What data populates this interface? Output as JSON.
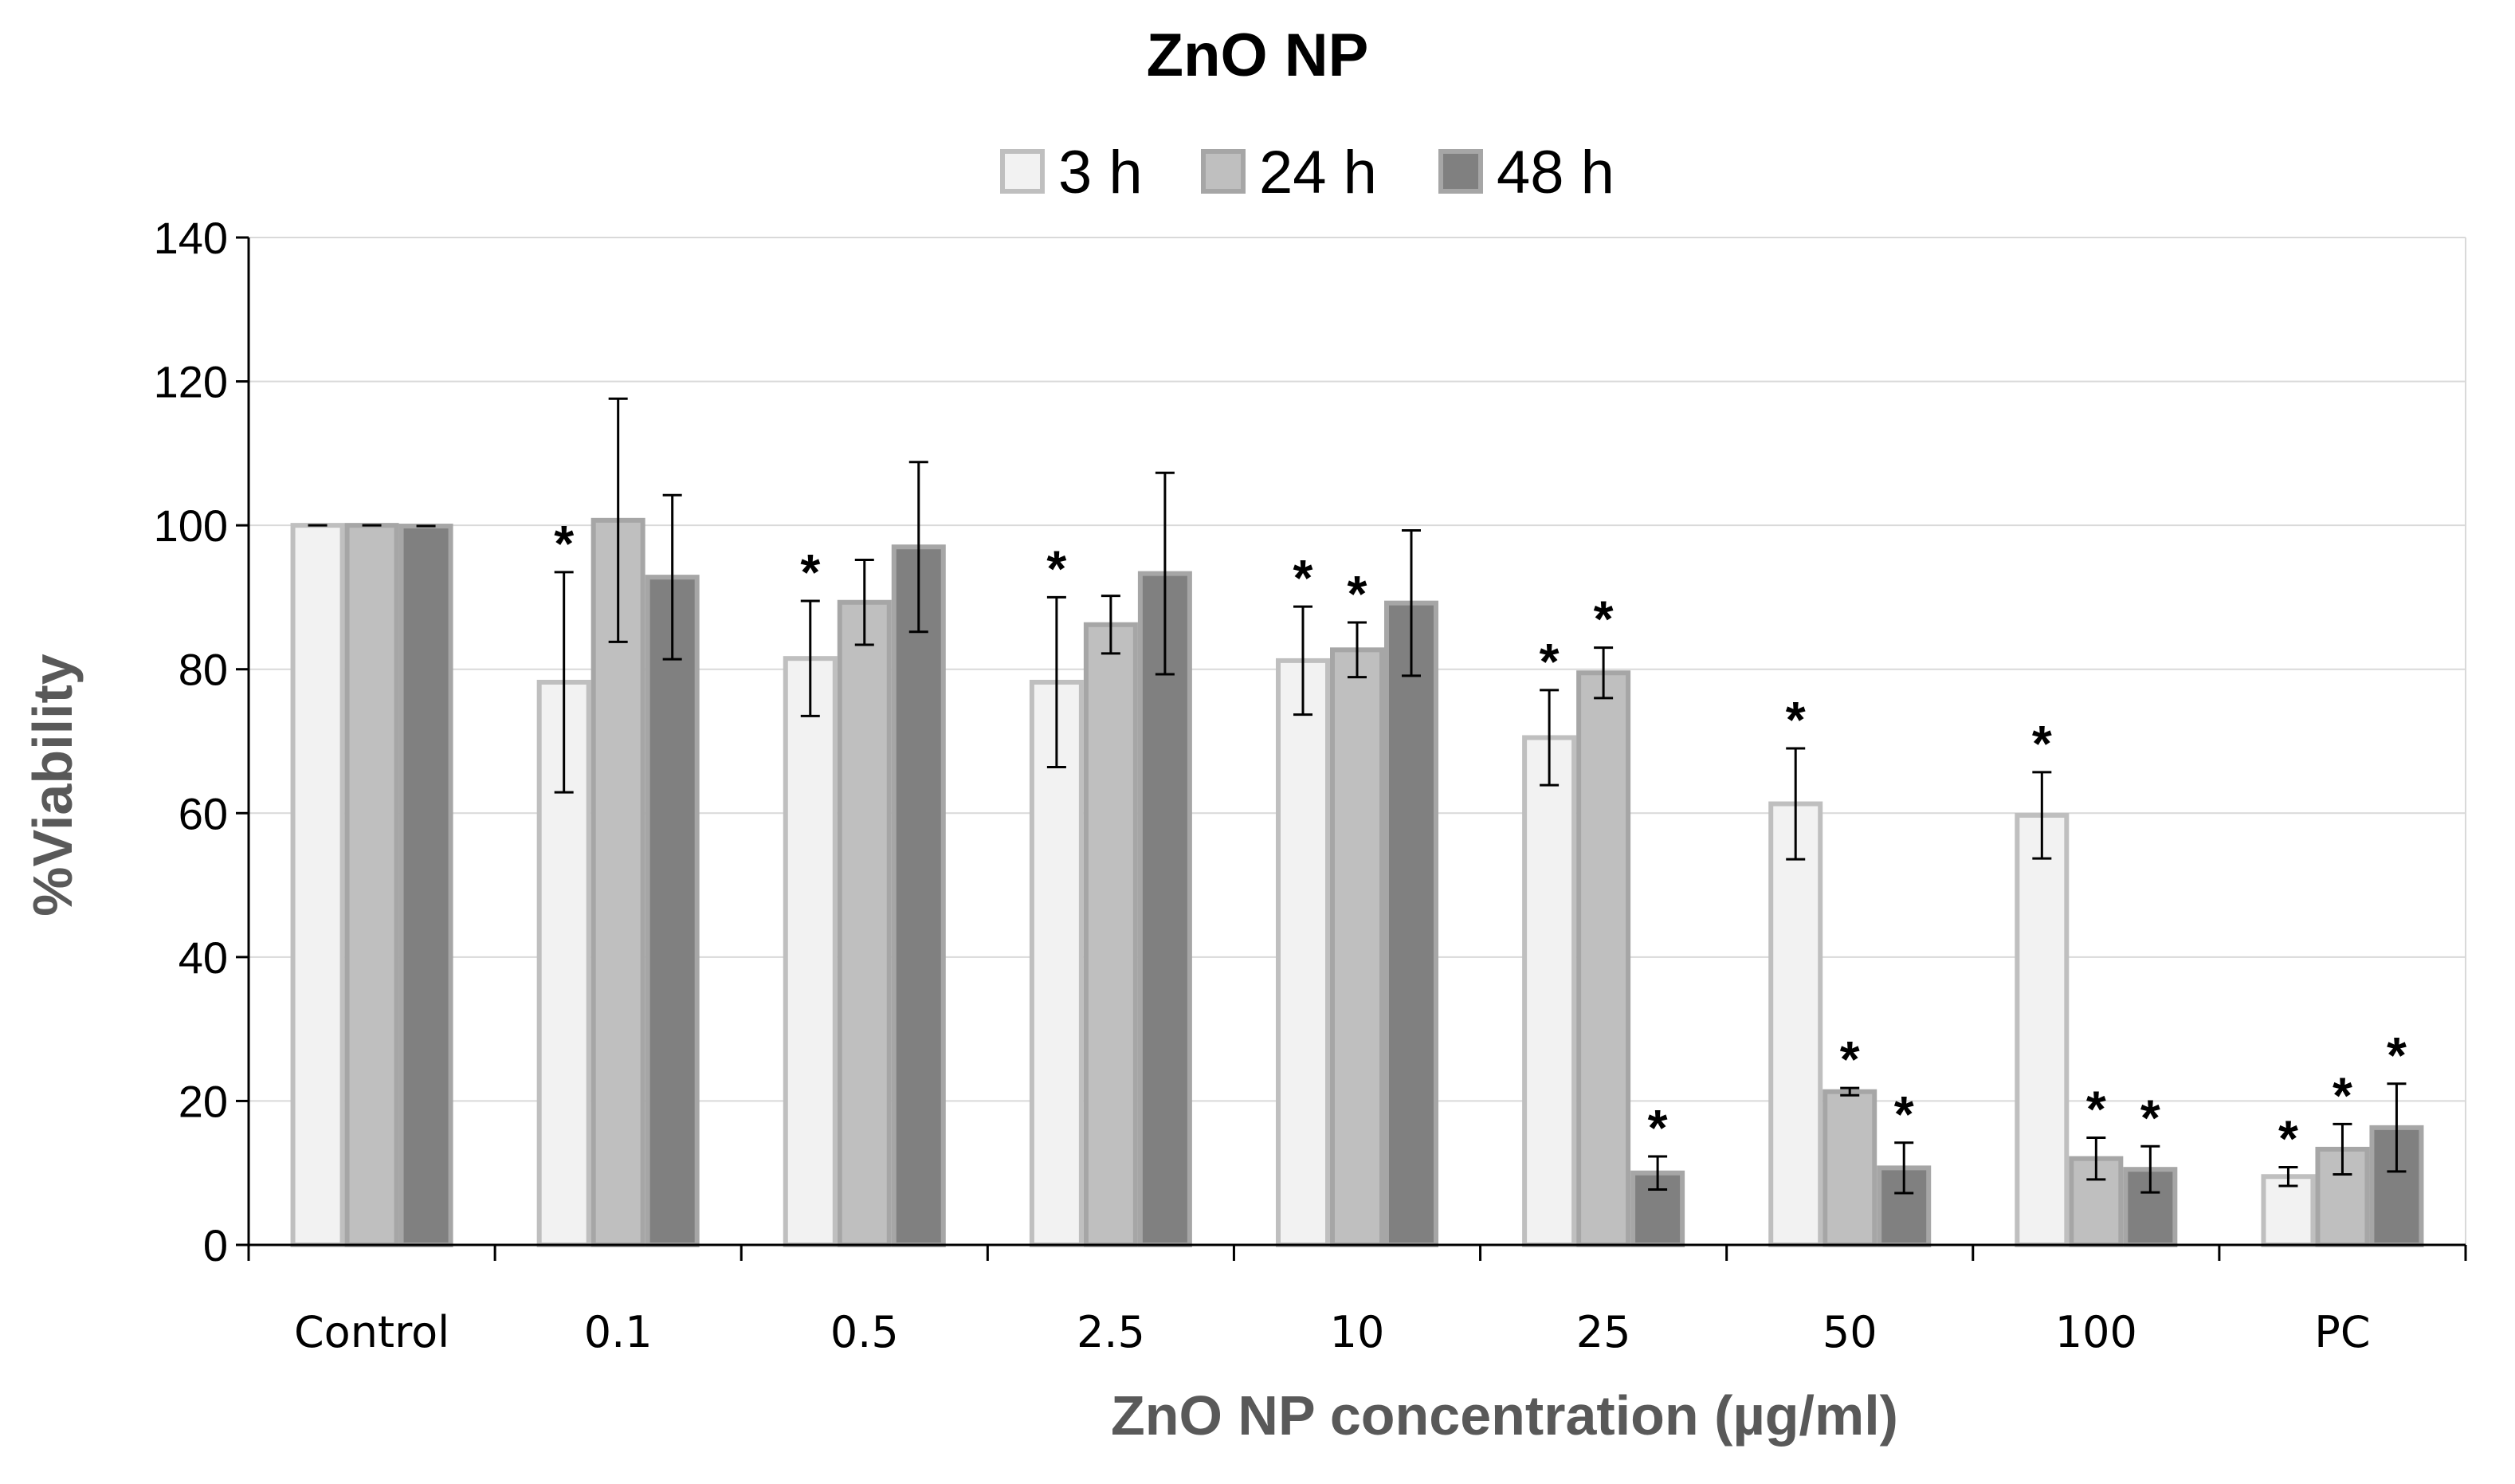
{
  "chart_data": {
    "type": "bar",
    "title": "ZnO NP",
    "xlabel": "ZnO NP concentration (µg/ml)",
    "ylabel": "%Viability",
    "ylim": [
      0,
      140
    ],
    "yticks": [
      0,
      20,
      40,
      60,
      80,
      100,
      120,
      140
    ],
    "ytick_labels": [
      "0",
      "20",
      "40",
      "60",
      "80",
      "100",
      "120",
      "140"
    ],
    "grid": true,
    "legend_position": "top-center",
    "categories": [
      "Control",
      "0.1",
      "0.5",
      "2.5",
      "10",
      "25",
      "50",
      "100",
      "PC"
    ],
    "significance_marker": "*",
    "series": [
      {
        "name": "3 h",
        "fill": "#f2f2f2",
        "stroke": "#bfbfbf",
        "values": [
          100,
          78.2,
          81.5,
          78.2,
          81.2,
          70.5,
          61.3,
          59.7,
          9.5
        ],
        "errors": [
          0,
          15.3,
          8.0,
          11.8,
          7.5,
          6.6,
          7.7,
          6.0,
          1.3
        ],
        "significant": [
          false,
          true,
          true,
          true,
          true,
          true,
          true,
          true,
          true
        ]
      },
      {
        "name": "24 h",
        "fill": "#bfbfbf",
        "stroke": "#a6a6a6",
        "values": [
          100,
          100.7,
          89.3,
          86.2,
          82.7,
          79.5,
          21.3,
          12,
          13.3
        ],
        "errors": [
          0,
          16.9,
          5.9,
          4.0,
          3.8,
          3.5,
          0.5,
          2.9,
          3.5
        ],
        "significant": [
          false,
          false,
          false,
          false,
          true,
          true,
          true,
          true,
          true
        ]
      },
      {
        "name": "48 h",
        "fill": "#808080",
        "stroke": "#a6a6a6",
        "values": [
          99.9,
          92.8,
          97,
          93.3,
          89.2,
          10,
          10.7,
          10.5,
          16.3
        ],
        "errors": [
          0,
          11.4,
          11.8,
          14.0,
          10.1,
          2.3,
          3.5,
          3.2,
          6.1
        ],
        "significant": [
          false,
          false,
          false,
          false,
          false,
          true,
          true,
          true,
          true
        ]
      }
    ]
  }
}
